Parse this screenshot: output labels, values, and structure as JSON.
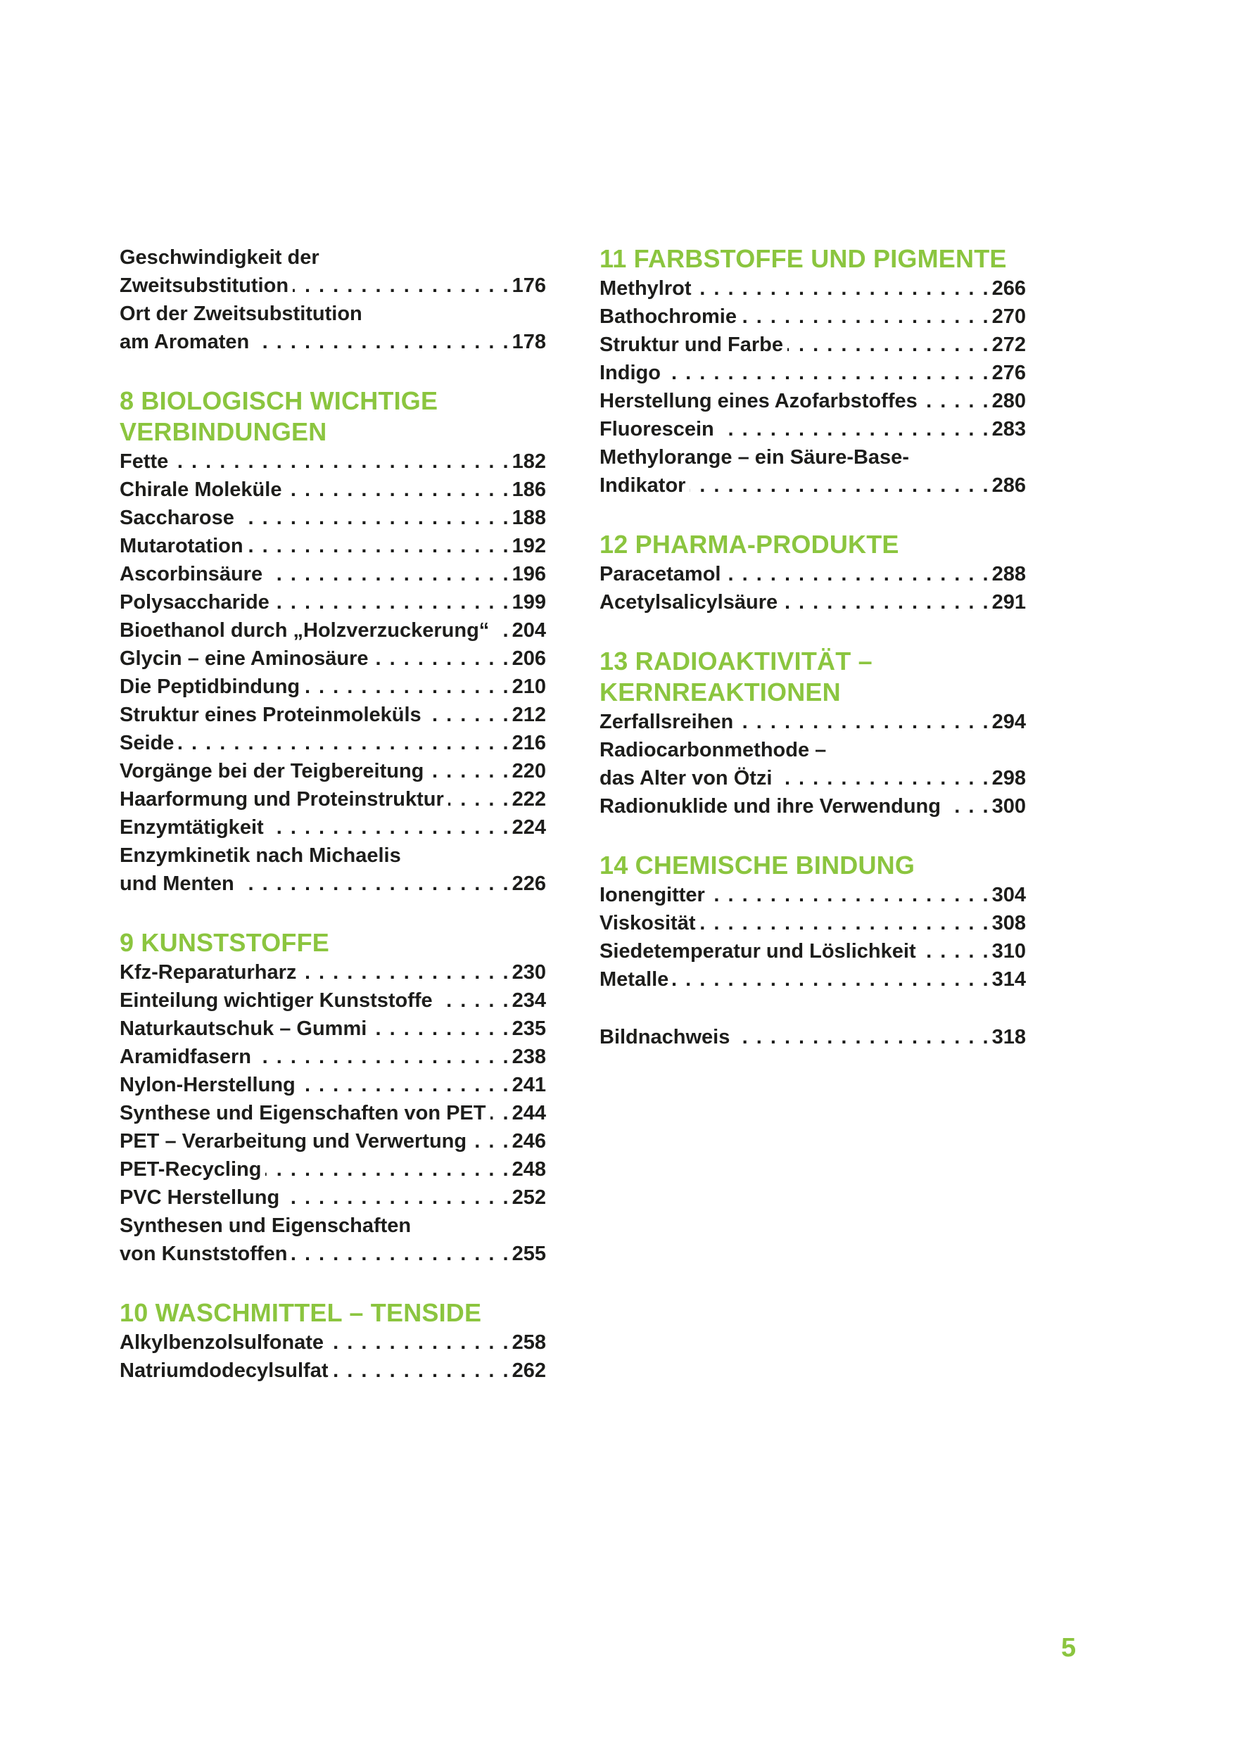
{
  "page": {
    "footer_page_number": "5"
  },
  "colors": {
    "accent_green": "#8BC53F",
    "text": "#1D1D1B",
    "background": "#FFFFFF"
  },
  "columns": [
    {
      "sections": [
        {
          "heading_lines": [],
          "entries": [
            {
              "lines": [
                "Geschwindigkeit der",
                "Zweitsubstitution"
              ],
              "page": "176"
            },
            {
              "lines": [
                "Ort der Zweitsubstitution",
                "am Aromaten"
              ],
              "page": "178"
            }
          ]
        },
        {
          "heading_lines": [
            "8 BIOLOGISCH WICHTIGE",
            "VERBINDUNGEN"
          ],
          "entries": [
            {
              "lines": [
                "Fette"
              ],
              "page": "182"
            },
            {
              "lines": [
                "Chirale Moleküle"
              ],
              "page": "186"
            },
            {
              "lines": [
                "Saccharose"
              ],
              "page": "188"
            },
            {
              "lines": [
                "Mutarotation"
              ],
              "page": "192"
            },
            {
              "lines": [
                "Ascorbinsäure"
              ],
              "page": "196"
            },
            {
              "lines": [
                "Polysaccharide"
              ],
              "page": "199"
            },
            {
              "lines": [
                "Bioethanol durch „Holzverzuckerung“"
              ],
              "page": "204"
            },
            {
              "lines": [
                "Glycin – eine Aminosäure"
              ],
              "page": "206"
            },
            {
              "lines": [
                "Die Peptidbindung"
              ],
              "page": "210"
            },
            {
              "lines": [
                "Struktur eines Proteinmoleküls"
              ],
              "page": "212"
            },
            {
              "lines": [
                "Seide"
              ],
              "page": "216"
            },
            {
              "lines": [
                "Vorgänge bei der Teigbereitung"
              ],
              "page": "220"
            },
            {
              "lines": [
                "Haarformung und Proteinstruktur"
              ],
              "page": "222"
            },
            {
              "lines": [
                "Enzymtätigkeit"
              ],
              "page": "224"
            },
            {
              "lines": [
                "Enzymkinetik nach Michaelis",
                "und Menten"
              ],
              "page": "226"
            }
          ]
        },
        {
          "heading_lines": [
            "9 KUNSTSTOFFE"
          ],
          "entries": [
            {
              "lines": [
                "Kfz-Reparaturharz"
              ],
              "page": "230"
            },
            {
              "lines": [
                "Einteilung wichtiger Kunststoffe"
              ],
              "page": "234"
            },
            {
              "lines": [
                "Naturkautschuk – Gummi"
              ],
              "page": "235"
            },
            {
              "lines": [
                "Aramidfasern"
              ],
              "page": "238"
            },
            {
              "lines": [
                "Nylon-Herstellung"
              ],
              "page": "241"
            },
            {
              "lines": [
                "Synthese und Eigenschaften von PET"
              ],
              "page": "244"
            },
            {
              "lines": [
                "PET – Verarbeitung und Verwertung"
              ],
              "page": "246"
            },
            {
              "lines": [
                "PET-Recycling"
              ],
              "page": "248"
            },
            {
              "lines": [
                "PVC Herstellung"
              ],
              "page": "252"
            },
            {
              "lines": [
                "Synthesen und Eigenschaften",
                "von Kunststoffen"
              ],
              "page": "255"
            }
          ]
        },
        {
          "heading_lines": [
            "10 WASCHMITTEL – TENSIDE"
          ],
          "entries": [
            {
              "lines": [
                "Alkylbenzolsulfonate"
              ],
              "page": "258"
            },
            {
              "lines": [
                "Natriumdodecylsulfat"
              ],
              "page": "262"
            }
          ]
        }
      ]
    },
    {
      "sections": [
        {
          "heading_lines": [
            "11 FARBSTOFFE UND PIGMENTE"
          ],
          "entries": [
            {
              "lines": [
                "Methylrot"
              ],
              "page": "266"
            },
            {
              "lines": [
                "Bathochromie"
              ],
              "page": "270"
            },
            {
              "lines": [
                "Struktur und Farbe"
              ],
              "page": "272"
            },
            {
              "lines": [
                "Indigo"
              ],
              "page": "276"
            },
            {
              "lines": [
                "Herstellung eines Azofarbstoffes"
              ],
              "page": "280"
            },
            {
              "lines": [
                "Fluorescein"
              ],
              "page": "283"
            },
            {
              "lines": [
                "Methylorange – ein Säure-Base-",
                "Indikator"
              ],
              "page": "286"
            }
          ]
        },
        {
          "heading_lines": [
            "12 PHARMA-PRODUKTE"
          ],
          "entries": [
            {
              "lines": [
                "Paracetamol"
              ],
              "page": "288"
            },
            {
              "lines": [
                "Acetylsalicylsäure"
              ],
              "page": "291"
            }
          ]
        },
        {
          "heading_lines": [
            "13 RADIOAKTIVITÄT –",
            "KERNREAKTIONEN"
          ],
          "entries": [
            {
              "lines": [
                "Zerfallsreihen"
              ],
              "page": "294"
            },
            {
              "lines": [
                "Radiocarbonmethode –",
                "das Alter von Ötzi"
              ],
              "page": "298"
            },
            {
              "lines": [
                "Radionuklide und ihre Verwendung"
              ],
              "page": "300"
            }
          ]
        },
        {
          "heading_lines": [
            "14 CHEMISCHE BINDUNG"
          ],
          "entries": [
            {
              "lines": [
                "Ionengitter"
              ],
              "page": "304"
            },
            {
              "lines": [
                "Viskosität"
              ],
              "page": "308"
            },
            {
              "lines": [
                "Siedetemperatur und Löslichkeit"
              ],
              "page": "310"
            },
            {
              "lines": [
                "Metalle"
              ],
              "page": "314"
            }
          ]
        },
        {
          "heading_lines": [],
          "entries": [
            {
              "lines": [
                "Bildnachweis"
              ],
              "page": "318"
            }
          ]
        }
      ]
    }
  ]
}
